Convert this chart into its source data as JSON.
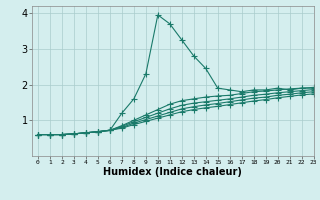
{
  "xlabel": "Humidex (Indice chaleur)",
  "ylabel": "",
  "background_color": "#d4eeee",
  "grid_color": "#aacccc",
  "line_color": "#1a7a6a",
  "xlim": [
    -0.5,
    23
  ],
  "ylim": [
    0,
    4.2
  ],
  "xtick_labels": [
    "0",
    "1",
    "2",
    "3",
    "4",
    "5",
    "6",
    "7",
    "8",
    "9",
    "10",
    "11",
    "12",
    "13",
    "14",
    "15",
    "16",
    "17",
    "18",
    "19",
    "20",
    "21",
    "22",
    "23"
  ],
  "yticks": [
    1,
    2,
    3,
    4
  ],
  "series": [
    [
      0.6,
      0.6,
      0.6,
      0.62,
      0.65,
      0.68,
      0.72,
      1.2,
      1.6,
      2.3,
      3.95,
      3.7,
      3.25,
      2.8,
      2.45,
      1.9,
      1.85,
      1.8,
      1.85,
      1.85,
      1.9,
      1.85,
      1.9,
      1.9
    ],
    [
      0.6,
      0.6,
      0.6,
      0.62,
      0.65,
      0.68,
      0.72,
      0.85,
      1.0,
      1.15,
      1.3,
      1.45,
      1.55,
      1.6,
      1.65,
      1.68,
      1.7,
      1.75,
      1.8,
      1.82,
      1.85,
      1.88,
      1.9,
      1.92
    ],
    [
      0.6,
      0.6,
      0.6,
      0.62,
      0.65,
      0.68,
      0.72,
      0.83,
      0.96,
      1.08,
      1.2,
      1.32,
      1.42,
      1.48,
      1.52,
      1.56,
      1.6,
      1.65,
      1.7,
      1.73,
      1.77,
      1.8,
      1.83,
      1.86
    ],
    [
      0.6,
      0.6,
      0.6,
      0.62,
      0.65,
      0.68,
      0.72,
      0.8,
      0.92,
      1.02,
      1.12,
      1.22,
      1.32,
      1.38,
      1.43,
      1.47,
      1.52,
      1.57,
      1.62,
      1.65,
      1.7,
      1.73,
      1.77,
      1.8
    ],
    [
      0.6,
      0.6,
      0.6,
      0.62,
      0.65,
      0.68,
      0.72,
      0.78,
      0.88,
      0.97,
      1.06,
      1.15,
      1.24,
      1.3,
      1.35,
      1.39,
      1.44,
      1.49,
      1.54,
      1.58,
      1.63,
      1.67,
      1.71,
      1.74
    ]
  ],
  "marker": "+",
  "marker_size": 4,
  "linewidth": 0.8
}
